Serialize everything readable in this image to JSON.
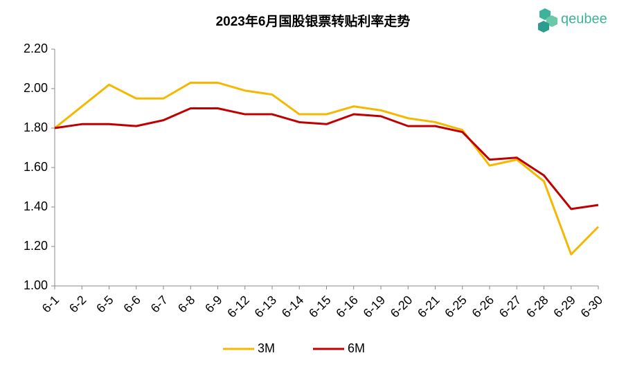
{
  "brand": "qeubee",
  "chart_data": {
    "type": "line",
    "title": "2023年6月国股银票转贴利率走势",
    "categories": [
      "6-1",
      "6-2",
      "6-5",
      "6-6",
      "6-7",
      "6-8",
      "6-9",
      "6-12",
      "6-13",
      "6-14",
      "6-15",
      "6-16",
      "6-19",
      "6-20",
      "6-21",
      "6-25",
      "6-26",
      "6-27",
      "6-28",
      "6-29",
      "6-30"
    ],
    "series": [
      {
        "name": "3M",
        "color": "#f5b800",
        "values": [
          1.8,
          1.91,
          2.02,
          1.95,
          1.95,
          2.03,
          2.03,
          1.99,
          1.97,
          1.87,
          1.87,
          1.91,
          1.89,
          1.85,
          1.83,
          1.79,
          1.61,
          1.64,
          1.53,
          1.16,
          1.3
        ]
      },
      {
        "name": "6M",
        "color": "#c00000",
        "values": [
          1.8,
          1.82,
          1.82,
          1.81,
          1.84,
          1.9,
          1.9,
          1.87,
          1.87,
          1.83,
          1.82,
          1.87,
          1.86,
          1.81,
          1.81,
          1.78,
          1.64,
          1.65,
          1.56,
          1.39,
          1.41
        ]
      }
    ],
    "ylim": [
      1.0,
      2.2
    ],
    "yticks": [
      {
        "value": 1.0,
        "label": "1.00"
      },
      {
        "value": 1.2,
        "label": "1.20"
      },
      {
        "value": 1.4,
        "label": "1.40"
      },
      {
        "value": 1.6,
        "label": "1.60"
      },
      {
        "value": 1.8,
        "label": "1.80"
      },
      {
        "value": 2.0,
        "label": "2.00"
      },
      {
        "value": 2.2,
        "label": "2.20"
      }
    ],
    "grid": false,
    "legend": "bottom"
  }
}
